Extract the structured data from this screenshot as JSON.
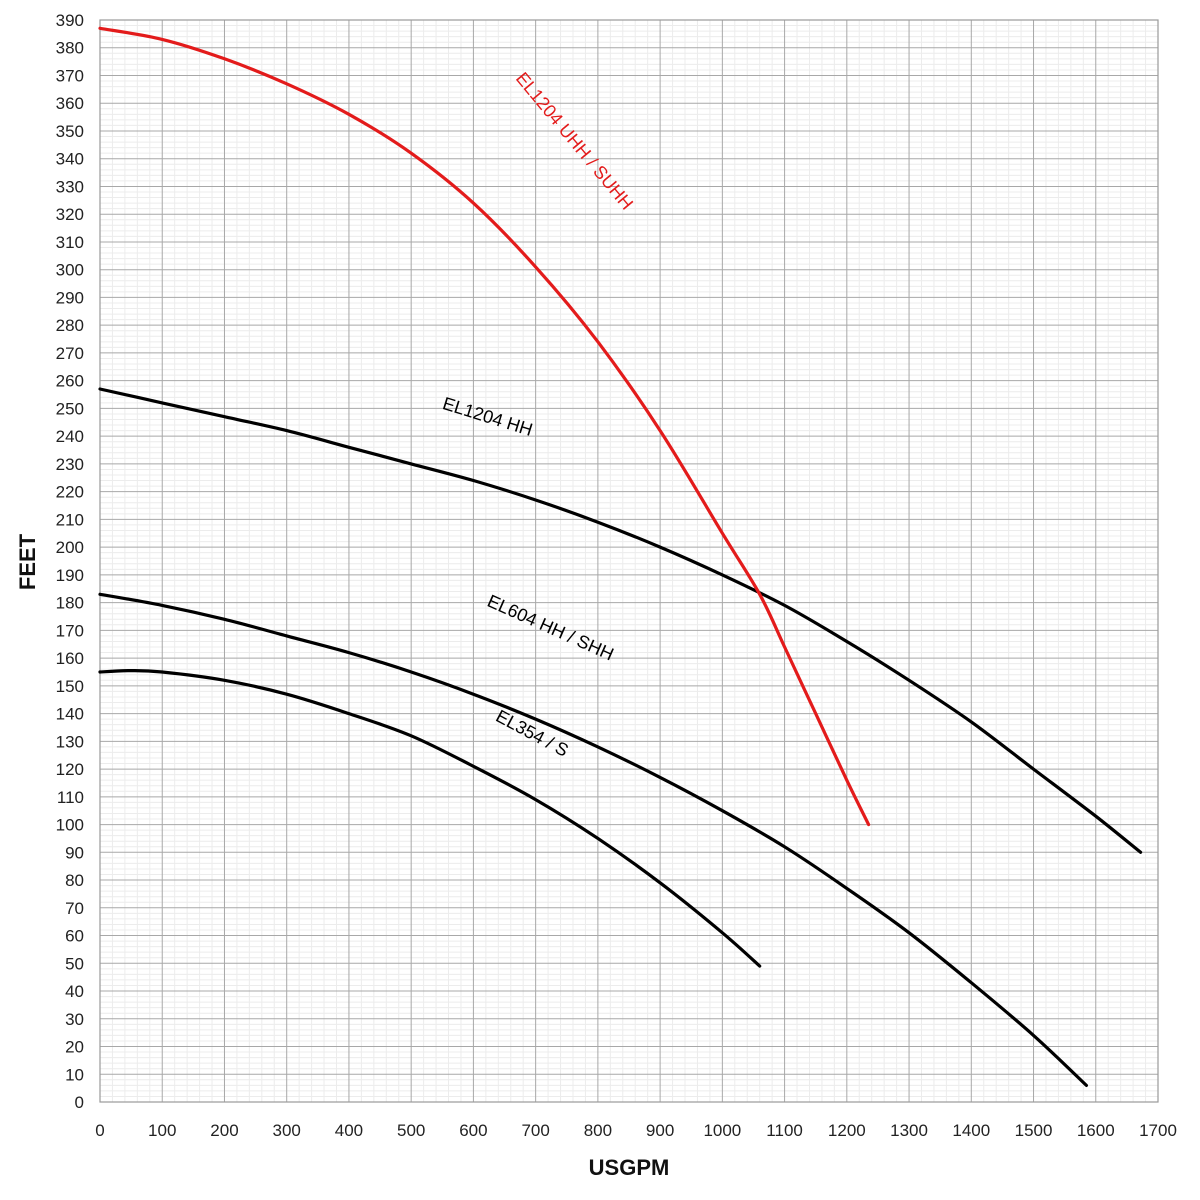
{
  "chart_data": {
    "type": "line",
    "title": "",
    "xlabel": "USGPM",
    "ylabel": "FEET",
    "xlim": [
      0,
      1700
    ],
    "ylim": [
      0,
      390
    ],
    "xticks": [
      0,
      100,
      200,
      300,
      400,
      500,
      600,
      700,
      800,
      900,
      1000,
      1100,
      1200,
      1300,
      1400,
      1500,
      1600,
      1700
    ],
    "yticks": [
      0,
      10,
      20,
      30,
      40,
      50,
      60,
      70,
      80,
      90,
      100,
      110,
      120,
      130,
      140,
      150,
      160,
      170,
      180,
      190,
      200,
      210,
      220,
      230,
      240,
      250,
      260,
      270,
      280,
      290,
      300,
      310,
      320,
      330,
      340,
      350,
      360,
      370,
      380,
      390
    ],
    "grid": true,
    "legend": "none",
    "series": [
      {
        "name": "EL1204 UHH / SUHH",
        "color": "#e31b1b",
        "x": [
          0,
          100,
          200,
          300,
          400,
          500,
          600,
          700,
          800,
          900,
          1000,
          1060,
          1100,
          1150,
          1200,
          1235
        ],
        "y": [
          387,
          383,
          376,
          367,
          356,
          342,
          324,
          301,
          274,
          242,
          205,
          183,
          164,
          140,
          116,
          100
        ]
      },
      {
        "name": "EL1204 HH",
        "color": "#000000",
        "x": [
          0,
          100,
          200,
          300,
          400,
          500,
          600,
          700,
          800,
          900,
          1000,
          1100,
          1200,
          1300,
          1400,
          1500,
          1600,
          1672
        ],
        "y": [
          257,
          252,
          247,
          242,
          236,
          230,
          224,
          217,
          209,
          200,
          190,
          179,
          166,
          152,
          137,
          120,
          103,
          90
        ]
      },
      {
        "name": "EL604 HH / SHH",
        "color": "#000000",
        "x": [
          0,
          100,
          200,
          300,
          400,
          500,
          600,
          700,
          800,
          900,
          1000,
          1100,
          1200,
          1300,
          1400,
          1500,
          1585
        ],
        "y": [
          183,
          179,
          174,
          168,
          162,
          155,
          147,
          138,
          128,
          117,
          105,
          92,
          77,
          61,
          43,
          24,
          6
        ]
      },
      {
        "name": "EL354 / S",
        "color": "#000000",
        "x": [
          0,
          50,
          100,
          200,
          300,
          400,
          500,
          600,
          700,
          800,
          900,
          1000,
          1060
        ],
        "y": [
          155,
          155.5,
          155,
          152,
          147,
          140,
          132,
          121,
          109,
          95,
          79,
          61,
          49
        ]
      }
    ],
    "annotations": [
      {
        "text": "EL1204 UHH / SUHH",
        "x": 755,
        "y": 345,
        "color": "#e31b1b"
      },
      {
        "text": "EL1204 HH",
        "x": 620,
        "y": 245,
        "color": "#000000"
      },
      {
        "text": "EL604 HH / SHH",
        "x": 720,
        "y": 169,
        "color": "#000000"
      },
      {
        "text": "EL354 / S",
        "x": 690,
        "y": 131,
        "color": "#000000"
      }
    ]
  }
}
